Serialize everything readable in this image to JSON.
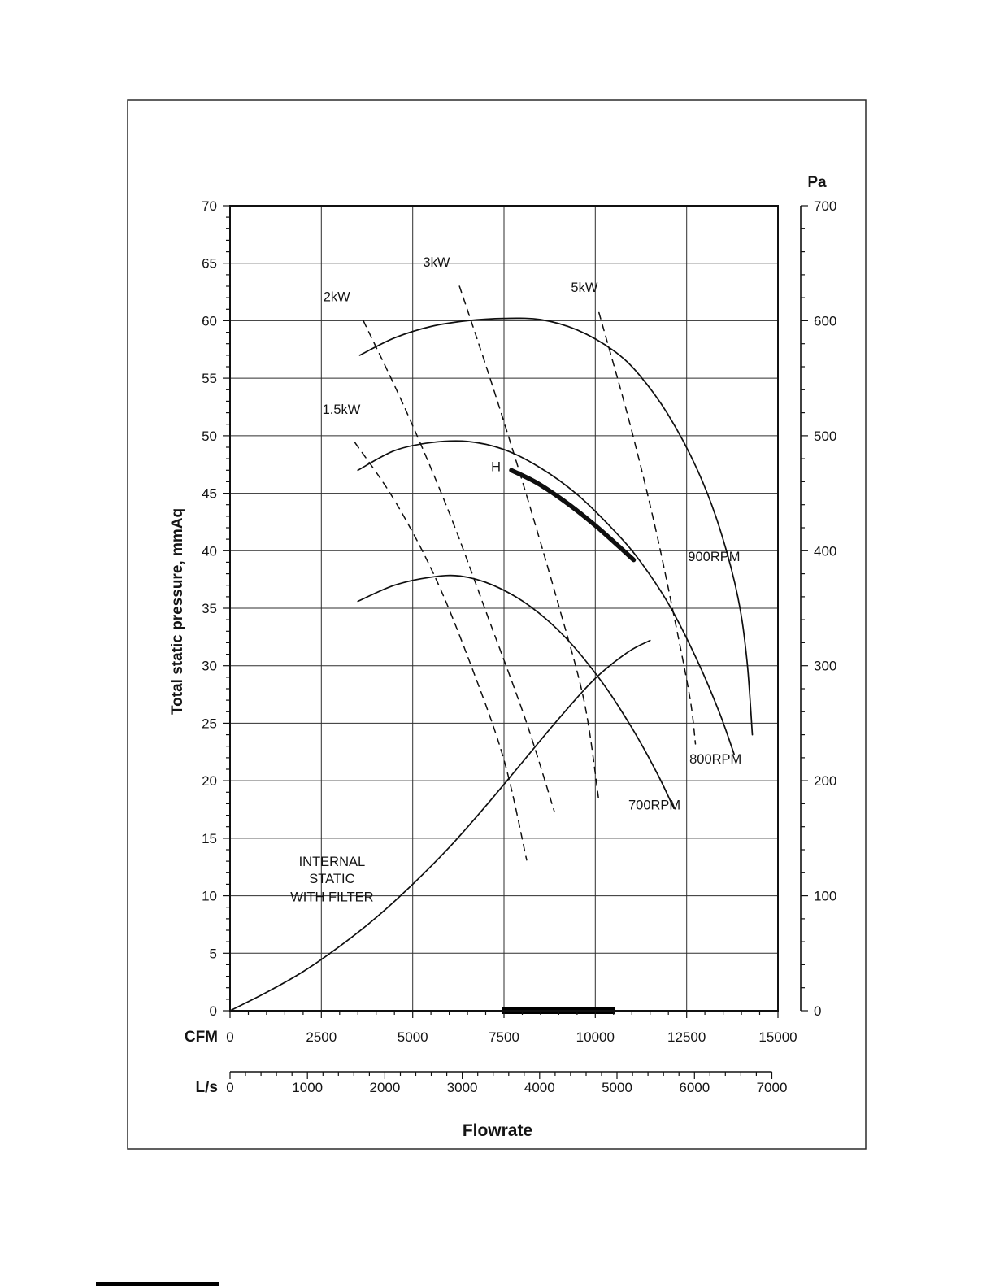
{
  "chart_data": {
    "type": "line",
    "xlabel": "Flowrate",
    "x_axis_cfm": {
      "label": "CFM",
      "min": 0,
      "max": 15000,
      "major_step": 2500,
      "minor_step": 500
    },
    "x_axis_ls": {
      "label": "L/s",
      "min": 0,
      "max": 7000,
      "major_step": 1000,
      "minor_step": 200,
      "ls_to_cfm": 2.11888
    },
    "y_axis_mmaq": {
      "label": "Total static pressure, mmAq",
      "min": 0,
      "max": 70,
      "major_step": 5,
      "minor_step": 1
    },
    "y_axis_pa": {
      "label": "Pa",
      "min": 0,
      "max": 700,
      "major_step": 100,
      "minor_step": 20
    },
    "grid": {
      "x_step_cfm": 2500,
      "y_step_mmaq": 5,
      "on": true
    },
    "legend_position": "inline-annotations",
    "series": [
      {
        "id": "curve-900rpm",
        "name": "900RPM",
        "line": "solid",
        "width": 1.7,
        "points": [
          [
            3550,
            57.0
          ],
          [
            4500,
            58.5
          ],
          [
            5500,
            59.5
          ],
          [
            6500,
            60.0
          ],
          [
            7500,
            60.2
          ],
          [
            8500,
            60.1
          ],
          [
            9500,
            59.2
          ],
          [
            10500,
            57.4
          ],
          [
            11200,
            55.3
          ],
          [
            12000,
            51.8
          ],
          [
            12800,
            47.0
          ],
          [
            13400,
            42.0
          ],
          [
            13900,
            36.0
          ],
          [
            14150,
            30.5
          ],
          [
            14300,
            24.0
          ]
        ]
      },
      {
        "id": "curve-800rpm",
        "name": "800RPM",
        "line": "solid",
        "width": 1.7,
        "points": [
          [
            3500,
            47.0
          ],
          [
            4500,
            48.7
          ],
          [
            5500,
            49.4
          ],
          [
            6500,
            49.5
          ],
          [
            7500,
            48.8
          ],
          [
            8500,
            47.2
          ],
          [
            9500,
            44.9
          ],
          [
            10500,
            41.8
          ],
          [
            11200,
            39.2
          ],
          [
            12000,
            35.4
          ],
          [
            12800,
            30.4
          ],
          [
            13400,
            25.9
          ],
          [
            13800,
            22.3
          ]
        ]
      },
      {
        "id": "curve-700rpm",
        "name": "700RPM",
        "line": "solid",
        "width": 1.7,
        "points": [
          [
            3500,
            35.6
          ],
          [
            4500,
            37.0
          ],
          [
            5500,
            37.7
          ],
          [
            6300,
            37.8
          ],
          [
            7200,
            37.0
          ],
          [
            8200,
            35.2
          ],
          [
            9200,
            32.4
          ],
          [
            10200,
            28.5
          ],
          [
            11000,
            24.6
          ],
          [
            11700,
            20.6
          ],
          [
            12150,
            17.6
          ]
        ]
      },
      {
        "id": "curve-system-internal-static",
        "name": "INTERNAL STATIC WITH FILTER",
        "line": "solid",
        "width": 1.7,
        "points": [
          [
            0,
            0
          ],
          [
            1000,
            1.6
          ],
          [
            2000,
            3.4
          ],
          [
            3000,
            5.6
          ],
          [
            4000,
            8.1
          ],
          [
            5000,
            11.0
          ],
          [
            6000,
            14.2
          ],
          [
            7000,
            17.8
          ],
          [
            8000,
            21.6
          ],
          [
            9000,
            25.4
          ],
          [
            10000,
            28.9
          ],
          [
            10900,
            31.2
          ],
          [
            11500,
            32.2
          ]
        ]
      },
      {
        "id": "curve-power-1-5kw",
        "name": "1.5kW",
        "line": "dashed",
        "width": 1.5,
        "points": [
          [
            3420,
            49.4
          ],
          [
            4500,
            44.4
          ],
          [
            5600,
            37.8
          ],
          [
            6600,
            30.0
          ],
          [
            7500,
            21.8
          ],
          [
            8120,
            13.1
          ]
        ]
      },
      {
        "id": "curve-power-2kw",
        "name": "2kW",
        "line": "dashed",
        "width": 1.5,
        "points": [
          [
            3650,
            60.0
          ],
          [
            4800,
            52.3
          ],
          [
            6000,
            43.3
          ],
          [
            7100,
            33.9
          ],
          [
            8100,
            25.2
          ],
          [
            8880,
            17.3
          ]
        ]
      },
      {
        "id": "curve-power-3kw",
        "name": "3kW",
        "line": "dashed",
        "width": 1.5,
        "points": [
          [
            6280,
            63.0
          ],
          [
            7200,
            54.2
          ],
          [
            8100,
            45.0
          ],
          [
            9000,
            35.2
          ],
          [
            9700,
            26.8
          ],
          [
            10100,
            18.2
          ]
        ]
      },
      {
        "id": "curve-power-5kw",
        "name": "5kW",
        "line": "dashed",
        "width": 1.5,
        "points": [
          [
            10100,
            60.7
          ],
          [
            10900,
            51.6
          ],
          [
            11600,
            42.6
          ],
          [
            12200,
            33.6
          ],
          [
            12600,
            27.0
          ],
          [
            12740,
            23.2
          ]
        ]
      },
      {
        "id": "curve-operating-h",
        "name": "H",
        "line": "solid",
        "width": 5.5,
        "points": [
          [
            7700,
            47.0
          ],
          [
            8400,
            45.9
          ],
          [
            9200,
            44.2
          ],
          [
            10000,
            42.2
          ],
          [
            10600,
            40.5
          ],
          [
            11050,
            39.2
          ]
        ]
      }
    ],
    "annotations": [
      {
        "id": "label-1-5kw",
        "text": "1.5kW",
        "cfm": 3050,
        "mmaq": 51.9
      },
      {
        "id": "label-2kw",
        "text": "2kW",
        "cfm": 2920,
        "mmaq": 61.7
      },
      {
        "id": "label-3kw",
        "text": "3kW",
        "cfm": 5650,
        "mmaq": 64.7
      },
      {
        "id": "label-5kw",
        "text": "5kW",
        "cfm": 9700,
        "mmaq": 62.5
      },
      {
        "id": "label-h",
        "text": "H",
        "cfm": 7280,
        "mmaq": 46.9
      },
      {
        "id": "label-900rpm",
        "text": "900RPM",
        "cfm": 13250,
        "mmaq": 39.1
      },
      {
        "id": "label-800rpm",
        "text": "800RPM",
        "cfm": 13290,
        "mmaq": 21.5
      },
      {
        "id": "label-700rpm",
        "text": "700RPM",
        "cfm": 11620,
        "mmaq": 17.5
      },
      {
        "id": "label-system-1",
        "text": "INTERNAL",
        "cfm": 2790,
        "mmaq": 12.6
      },
      {
        "id": "label-system-2",
        "text": "STATIC",
        "cfm": 2790,
        "mmaq": 11.1
      },
      {
        "id": "label-system-3",
        "text": "WITH FILTER",
        "cfm": 2790,
        "mmaq": 9.5
      }
    ],
    "highlight": {
      "axis_bar_cfm_from": 7450,
      "axis_bar_cfm_to": 10550
    }
  }
}
